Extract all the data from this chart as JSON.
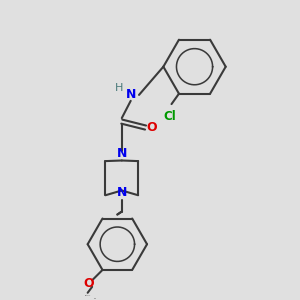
{
  "background_color": "#e0e0e0",
  "bond_color": "#3a3a3a",
  "N_color": "#0000ee",
  "O_color": "#dd0000",
  "Cl_color": "#009900",
  "H_color": "#4a7a7a",
  "line_width": 1.5,
  "fig_size": [
    3.0,
    3.0
  ],
  "dpi": 100,
  "xlim": [
    0,
    10
  ],
  "ylim": [
    0,
    10
  ]
}
